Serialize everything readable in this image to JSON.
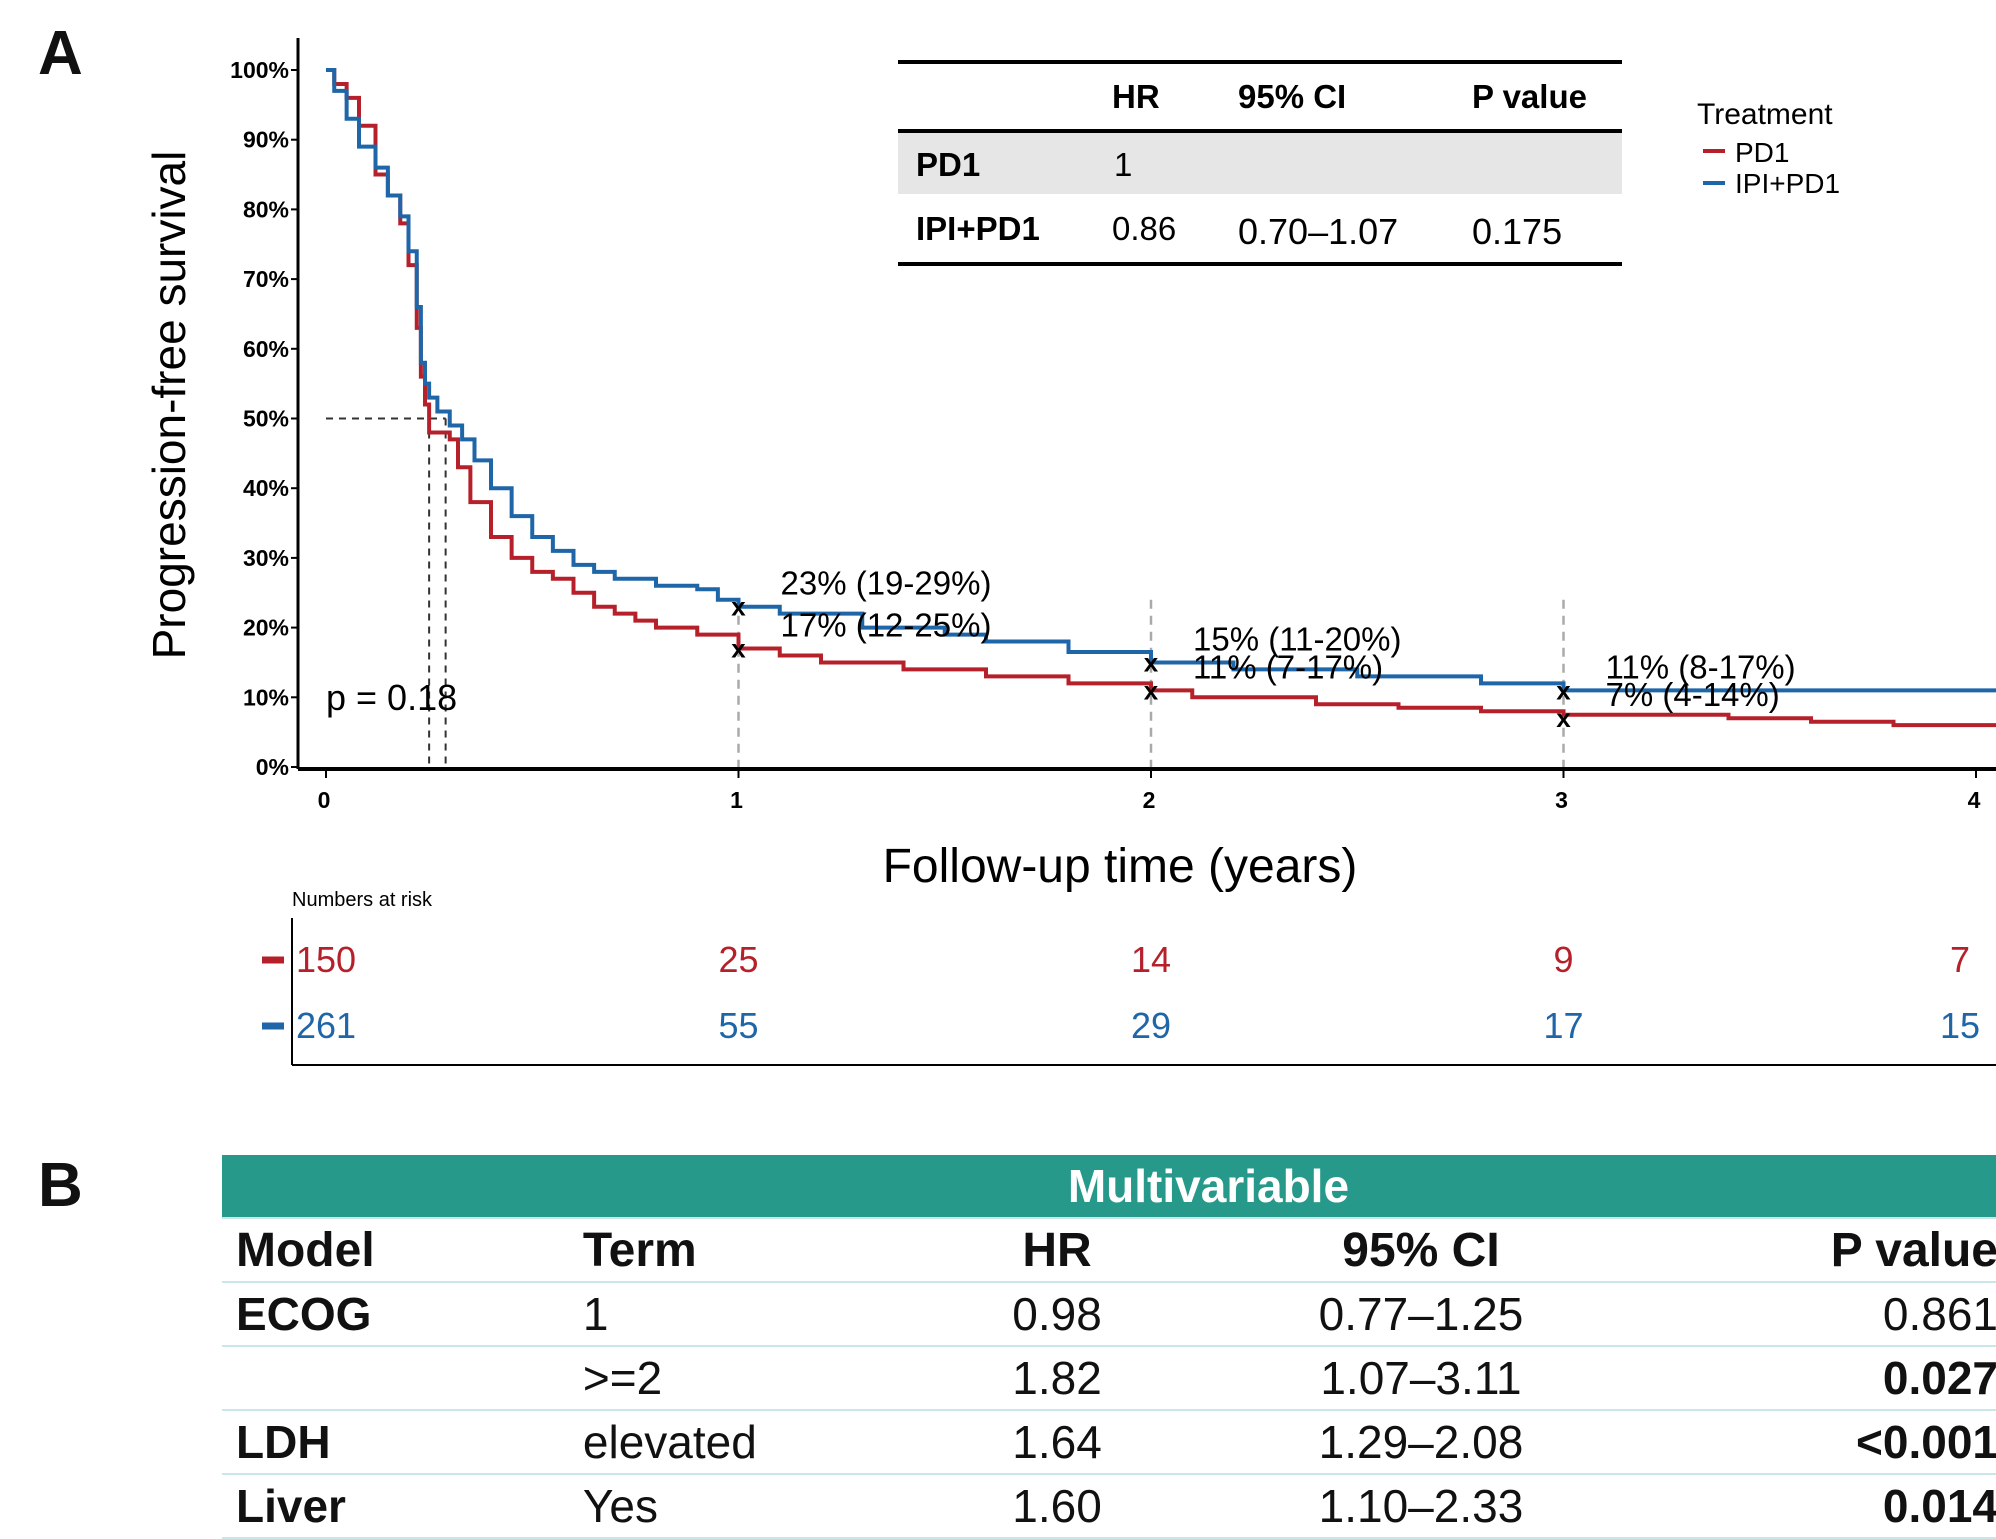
{
  "panel_a_label": "A",
  "panel_b_label": "B",
  "chart_data": {
    "type": "line",
    "chart_kind": "kaplan-meier",
    "ylabel": "Progression-free survival",
    "xlabel": "Follow-up time (years)",
    "xlim": [
      0,
      4
    ],
    "ylim": [
      0,
      100
    ],
    "x_ticks": [
      "0",
      "1",
      "2",
      "3",
      "4"
    ],
    "y_ticks": [
      "0%",
      "10%",
      "20%",
      "30%",
      "40%",
      "50%",
      "60%",
      "70%",
      "80%",
      "90%",
      "100%"
    ],
    "p_text": "p = 0.18",
    "legend": {
      "title": "Treatment",
      "placement": "top-right",
      "entries": [
        "PD1",
        "IPI+PD1"
      ]
    },
    "series": [
      {
        "name": "PD1",
        "color": "#b5202a",
        "median": 0.25,
        "x": [
          0,
          0.02,
          0.05,
          0.08,
          0.12,
          0.15,
          0.18,
          0.2,
          0.22,
          0.23,
          0.24,
          0.25,
          0.28,
          0.3,
          0.32,
          0.35,
          0.4,
          0.45,
          0.5,
          0.55,
          0.6,
          0.65,
          0.7,
          0.75,
          0.8,
          0.9,
          1.0,
          1.1,
          1.2,
          1.4,
          1.6,
          1.8,
          2.0,
          2.1,
          2.4,
          2.6,
          2.8,
          3.0,
          3.2,
          3.4,
          3.6,
          3.8,
          4.0
        ],
        "y": [
          100,
          98,
          96,
          92,
          85,
          82,
          78,
          72,
          63,
          56,
          52,
          48,
          48,
          47,
          43,
          38,
          33,
          30,
          28,
          27,
          25,
          23,
          22,
          21,
          20,
          19,
          17,
          16,
          15,
          14,
          13,
          12,
          11,
          10,
          9,
          8.5,
          8,
          7.5,
          7.5,
          7,
          6.5,
          6,
          6
        ]
      },
      {
        "name": "IPI+PD1",
        "color": "#1f66a9",
        "median": 0.29,
        "x": [
          0,
          0.02,
          0.05,
          0.08,
          0.12,
          0.15,
          0.18,
          0.2,
          0.22,
          0.23,
          0.24,
          0.25,
          0.27,
          0.3,
          0.33,
          0.36,
          0.4,
          0.45,
          0.5,
          0.55,
          0.6,
          0.65,
          0.7,
          0.8,
          0.9,
          0.95,
          1.0,
          1.1,
          1.3,
          1.5,
          1.6,
          1.8,
          2.0,
          2.2,
          2.5,
          2.8,
          3.0,
          3.2,
          3.5,
          3.8,
          4.0
        ],
        "y": [
          100,
          97,
          93,
          89,
          86,
          82,
          79,
          74,
          66,
          58,
          55,
          53,
          51,
          49,
          47,
          44,
          40,
          36,
          33,
          31,
          29,
          28,
          27,
          26,
          25.5,
          24,
          23,
          22,
          20,
          19,
          18,
          16.5,
          15,
          14,
          13,
          12,
          11,
          11,
          11,
          11,
          11
        ]
      }
    ],
    "annotations": [
      {
        "series": "IPI+PD1",
        "x": 1,
        "y": 23,
        "text": "23% (19-29%)"
      },
      {
        "series": "PD1",
        "x": 1,
        "y": 17,
        "text": "17% (12-25%)"
      },
      {
        "series": "IPI+PD1",
        "x": 2,
        "y": 15,
        "text": "15% (11-20%)"
      },
      {
        "series": "PD1",
        "x": 2,
        "y": 11,
        "text": "11% (7-17%)"
      },
      {
        "series": "IPI+PD1",
        "x": 3,
        "y": 11,
        "text": "11% (8-17%)"
      },
      {
        "series": "PD1",
        "x": 3,
        "y": 7,
        "text": "7% (4-14%)"
      }
    ],
    "hr_table": {
      "headers": [
        "",
        "HR",
        "95% CI",
        "P value"
      ],
      "rows": [
        [
          "PD1",
          "1",
          "",
          ""
        ],
        [
          "IPI+PD1",
          "0.86",
          "0.70–1.07",
          "0.175"
        ]
      ]
    },
    "risk_table": {
      "title": "Numbers at risk",
      "rows": [
        {
          "series": "PD1",
          "values": [
            "150",
            "25",
            "14",
            "9",
            "7"
          ]
        },
        {
          "series": "IPI+PD1",
          "values": [
            "261",
            "55",
            "29",
            "17",
            "15"
          ]
        }
      ]
    }
  },
  "table_b": {
    "group_header": "Multivariable",
    "headers": [
      "Model",
      "Term",
      "HR",
      "95% CI",
      "P value"
    ],
    "rows": [
      {
        "model": "ECOG",
        "term": "1",
        "hr": "0.98",
        "ci": "0.77–1.25",
        "p": "0.861",
        "bold": false
      },
      {
        "model": "",
        "term": ">=2",
        "hr": "1.82",
        "ci": "1.07–3.11",
        "p": "0.027",
        "bold": true
      },
      {
        "model": "LDH",
        "term": "elevated",
        "hr": "1.64",
        "ci": "1.29–2.08",
        "p": "<0.001",
        "bold": true
      },
      {
        "model": "Liver",
        "term": "Yes",
        "hr": "1.60",
        "ci": "1.10–2.33",
        "p": "0.014",
        "bold": true
      }
    ]
  }
}
